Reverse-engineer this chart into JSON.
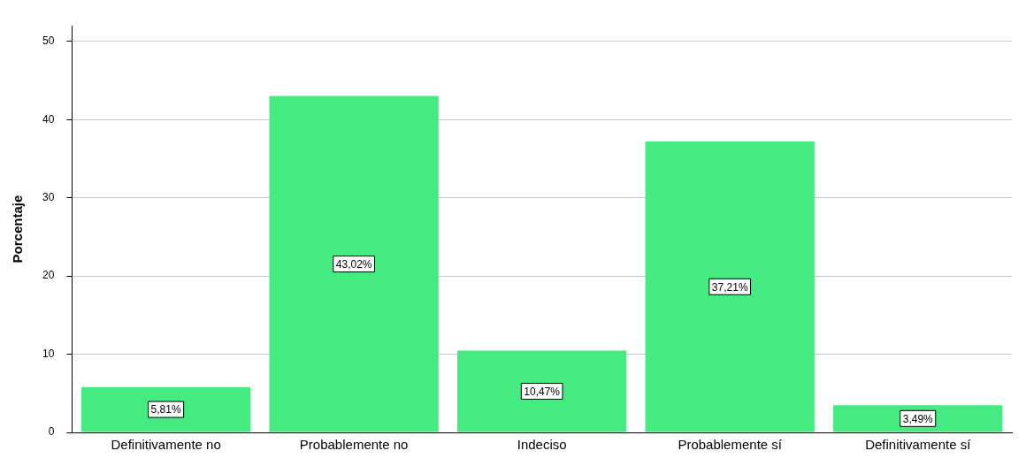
{
  "chart_data": {
    "type": "bar",
    "ylabel": "Porcentaje",
    "categories": [
      "Definitivamente no",
      "Probablemente no",
      "Indeciso",
      "Probablemente sí",
      "Definitivamente sí"
    ],
    "values": [
      5.81,
      43.02,
      10.47,
      37.21,
      3.49
    ],
    "value_labels": [
      "5,81%",
      "43,02%",
      "10,47%",
      "37,21%",
      "3,49%"
    ],
    "color": "#45ea80",
    "ylim": [
      0,
      52
    ],
    "yticks": [
      0,
      10,
      20,
      30,
      40,
      50
    ],
    "grid": "y",
    "legend": false
  }
}
